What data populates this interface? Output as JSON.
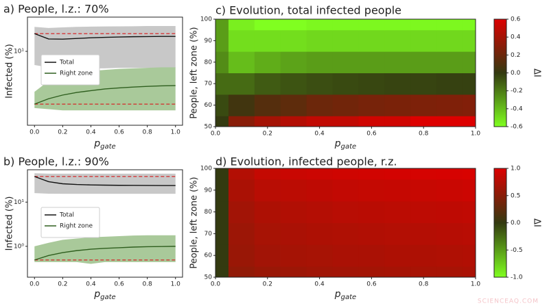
{
  "chart_data": [
    {
      "type": "line",
      "title": "a) People, l.z.: 70%",
      "ylabel": "Infected (%)",
      "xlabel": {
        "main": "p",
        "sub": "gate"
      },
      "log_y": true,
      "legend": "center left",
      "xlim": [
        -0.05,
        1.05
      ],
      "xticks": [
        {
          "value": 0,
          "label": "0.0"
        },
        0.2,
        0.4,
        0.6,
        0.8,
        {
          "value": 1,
          "label": "1.0"
        }
      ],
      "ylim": [
        0.63,
        36
      ],
      "yticks": [
        {
          "value": 10,
          "label": "10¹"
        }
      ],
      "x": [
        0,
        0.1,
        0.2,
        0.3,
        0.4,
        0.5,
        0.6,
        0.7,
        0.8,
        0.9,
        1.0
      ],
      "series": [
        {
          "name": "Total",
          "color": "#111111",
          "band_color": "#c8c8c8",
          "values": [
            19.4,
            15.9,
            15.8,
            16.2,
            16.6,
            16.9,
            17.1,
            17.3,
            17.4,
            17.5,
            17.5
          ],
          "band_upper": [
            25,
            24,
            24.5,
            25,
            25.2,
            25.4,
            25.5,
            25.6,
            25.8,
            25.8,
            25.8
          ],
          "band_lower": [
            6,
            5.5,
            5.2,
            5.3,
            5.3,
            5.3,
            5.4,
            5.4,
            5.4,
            5.4,
            5.4
          ]
        },
        {
          "name": "Right zone",
          "color": "#2e5e1e",
          "band_color": "#a9c99a",
          "values": [
            1.39,
            1.7,
            1.95,
            2.15,
            2.3,
            2.45,
            2.55,
            2.63,
            2.7,
            2.75,
            2.78
          ],
          "band_upper": [
            2.2,
            3.3,
            4.0,
            4.5,
            4.8,
            5.0,
            5.2,
            5.3,
            5.4,
            5.5,
            5.5
          ],
          "band_lower": [
            1.2,
            1.15,
            1.1,
            1.1,
            1.1,
            1.1,
            1.1,
            1.1,
            1.1,
            1.1,
            1.1
          ]
        }
      ],
      "hlines": [
        {
          "value": 19.4,
          "color": "#d62728"
        },
        {
          "value": 1.39,
          "color": "#d62728"
        }
      ]
    },
    {
      "type": "line",
      "title": "b) People, l.z.: 90%",
      "ylabel": "Infected (%)",
      "xlabel": {
        "main": "p",
        "sub": "gate"
      },
      "log_y": true,
      "legend": "center left",
      "xlim": [
        -0.05,
        1.05
      ],
      "xticks": [
        {
          "value": 0,
          "label": "0.0"
        },
        0.2,
        0.4,
        0.6,
        0.8,
        {
          "value": 1,
          "label": "1.0"
        }
      ],
      "ylim": [
        0.2,
        54
      ],
      "yticks": [
        {
          "value": 1,
          "label": "10⁰"
        },
        {
          "value": 10,
          "label": "10¹"
        }
      ],
      "x": [
        0,
        0.1,
        0.2,
        0.3,
        0.4,
        0.5,
        0.6,
        0.7,
        0.8,
        0.9,
        1.0
      ],
      "series": [
        {
          "name": "Total",
          "color": "#111111",
          "band_color": "#c8c8c8",
          "values": [
            38,
            29,
            26,
            25,
            24.5,
            24.2,
            24,
            23.9,
            23.8,
            23.7,
            23.7
          ],
          "band_upper": [
            45,
            44,
            44,
            44,
            44,
            44,
            44,
            44,
            44,
            44,
            44
          ],
          "band_lower": [
            16,
            15.5,
            15.4,
            15.4,
            15.4,
            15.4,
            15.4,
            15.4,
            15.4,
            15.4,
            15.4
          ]
        },
        {
          "name": "Right zone",
          "color": "#2e5e1e",
          "band_color": "#a9c99a",
          "values": [
            0.49,
            0.62,
            0.72,
            0.8,
            0.86,
            0.9,
            0.93,
            0.96,
            0.98,
            0.99,
            1.0
          ],
          "band_upper": [
            1.0,
            1.2,
            1.4,
            1.5,
            1.6,
            1.65,
            1.7,
            1.75,
            1.78,
            1.78,
            1.78
          ],
          "band_lower": [
            0.44,
            0.44,
            0.44,
            0.44,
            0.4,
            0.44,
            0.44,
            0.44,
            0.44,
            0.44,
            0.44
          ]
        }
      ],
      "hlines": [
        {
          "value": 38,
          "color": "#d62728"
        },
        {
          "value": 0.49,
          "color": "#d62728"
        }
      ]
    },
    {
      "type": "heatmap",
      "title": "c) Evolution, total infected people",
      "ylabel": "People, left zone (%)",
      "xlabel": {
        "main": "p",
        "sub": "gate"
      },
      "xlim": [
        0,
        1
      ],
      "xticks": [
        {
          "value": 0,
          "label": "0.0"
        },
        0.2,
        0.4,
        0.6,
        0.8,
        {
          "value": 1,
          "label": "1.0"
        }
      ],
      "ylim": [
        50,
        100
      ],
      "yticks": [
        50,
        60,
        70,
        80,
        90,
        100
      ],
      "x": [
        0,
        0.1,
        0.2,
        0.3,
        0.4,
        0.5,
        0.6,
        0.7,
        0.8,
        0.9,
        1.0
      ],
      "y": [
        50,
        60,
        70,
        80,
        90,
        100
      ],
      "z": [
        [
          0,
          0.3,
          0.4,
          0.45,
          0.5,
          0.5,
          0.55,
          0.55,
          0.6,
          0.6,
          0.6
        ],
        [
          -0.05,
          0.05,
          0.12,
          0.15,
          0.2,
          0.22,
          0.24,
          0.25,
          0.26,
          0.27,
          0.28
        ],
        [
          -0.15,
          -0.15,
          -0.1,
          -0.08,
          -0.06,
          -0.05,
          -0.04,
          -0.03,
          -0.03,
          -0.02,
          -0.02
        ],
        [
          -0.25,
          -0.4,
          -0.35,
          -0.32,
          -0.3,
          -0.3,
          -0.3,
          -0.3,
          -0.3,
          -0.3,
          -0.3
        ],
        [
          -0.3,
          -0.5,
          -0.5,
          -0.5,
          -0.48,
          -0.48,
          -0.48,
          -0.48,
          -0.48,
          -0.48,
          -0.48
        ],
        [
          -0.3,
          -0.55,
          -0.6,
          -0.6,
          -0.58,
          -0.58,
          -0.58,
          -0.58,
          -0.58,
          -0.58,
          -0.58
        ]
      ],
      "colorbar": {
        "label": "ΔI",
        "lim": [
          -0.6,
          0.6
        ],
        "ticks": [
          0.6,
          0.4,
          0.2,
          {
            "value": 0,
            "label": "0.0"
          },
          -0.2,
          -0.4,
          -0.6
        ],
        "colors": [
          "#80ff20",
          "#333a10",
          "#dd0000"
        ]
      }
    },
    {
      "type": "heatmap",
      "title": "d) Evolution, infected people, r.z.",
      "ylabel": "People, left zone (%)",
      "xlabel": {
        "main": "p",
        "sub": "gate"
      },
      "xlim": [
        0,
        1
      ],
      "xticks": [
        {
          "value": 0,
          "label": "0.0"
        },
        0.2,
        0.4,
        0.6,
        0.8,
        {
          "value": 1,
          "label": "1.0"
        }
      ],
      "ylim": [
        50,
        100
      ],
      "yticks": [
        50,
        60,
        70,
        80,
        90,
        100
      ],
      "x": [
        0,
        0.1,
        0.2,
        0.3,
        0.4,
        0.5,
        0.6,
        0.7,
        0.8,
        0.9,
        1.0
      ],
      "y": [
        50,
        60,
        70,
        80,
        90,
        100
      ],
      "z": [
        [
          0,
          0.55,
          0.6,
          0.62,
          0.64,
          0.65,
          0.66,
          0.67,
          0.68,
          0.68,
          0.7
        ],
        [
          0,
          0.6,
          0.65,
          0.67,
          0.68,
          0.7,
          0.7,
          0.72,
          0.72,
          0.73,
          0.74
        ],
        [
          0,
          0.62,
          0.68,
          0.7,
          0.72,
          0.73,
          0.74,
          0.75,
          0.76,
          0.77,
          0.78
        ],
        [
          0,
          0.65,
          0.72,
          0.74,
          0.76,
          0.78,
          0.79,
          0.8,
          0.81,
          0.82,
          0.83
        ],
        [
          0,
          0.7,
          0.78,
          0.8,
          0.82,
          0.84,
          0.85,
          0.86,
          0.87,
          0.88,
          0.9
        ],
        [
          0,
          0.75,
          0.85,
          0.88,
          0.9,
          0.92,
          0.93,
          0.94,
          0.95,
          0.96,
          0.97
        ]
      ],
      "colorbar": {
        "label": "ΔI",
        "lim": [
          -1,
          1
        ],
        "ticks": [
          {
            "value": 1,
            "label": "1.0"
          },
          0.5,
          {
            "value": 0,
            "label": "0.0"
          },
          -0.5,
          {
            "value": -1,
            "label": "-1.0"
          }
        ],
        "colors": [
          "#80ff20",
          "#333a10",
          "#dd0000"
        ]
      }
    }
  ],
  "watermark": "SCIENCEAQ.COM"
}
